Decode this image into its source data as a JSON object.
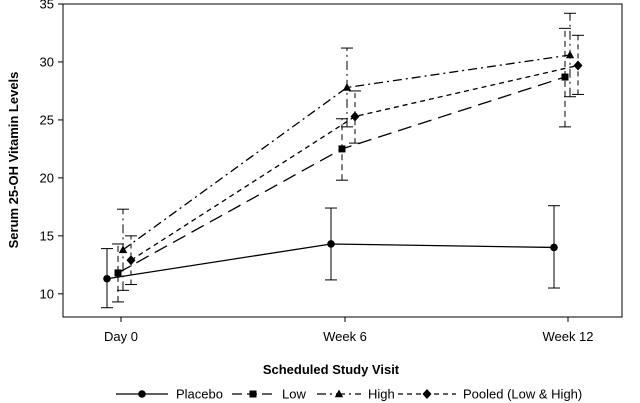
{
  "chart_data": {
    "type": "line",
    "title": "",
    "xlabel": "Scheduled Study Visit",
    "ylabel": "Serum 25-OH Vitamin Levels",
    "categories": [
      "Day 0",
      "Week 6",
      "Week 12"
    ],
    "ylim": [
      8,
      35
    ],
    "yticks": [
      10,
      15,
      20,
      25,
      30,
      35
    ],
    "grid": false,
    "legend_position": "bottom",
    "series": [
      {
        "name": "Placebo",
        "marker": "circle",
        "dash": "solid",
        "values": [
          11.3,
          14.3,
          14.0
        ],
        "lower": [
          8.8,
          11.2,
          10.5
        ],
        "upper": [
          13.9,
          17.4,
          17.6
        ]
      },
      {
        "name": "Low",
        "marker": "square",
        "dash": "long-dash",
        "values": [
          11.8,
          22.5,
          28.7
        ],
        "lower": [
          9.3,
          19.8,
          24.4
        ],
        "upper": [
          14.3,
          25.1,
          32.9
        ]
      },
      {
        "name": "High",
        "marker": "triangle",
        "dash": "dash-dot",
        "values": [
          13.8,
          27.8,
          30.6
        ],
        "lower": [
          10.3,
          24.4,
          27.0
        ],
        "upper": [
          17.3,
          31.2,
          34.2
        ]
      },
      {
        "name": "Pooled (Low & High)",
        "marker": "diamond",
        "dash": "short-dash",
        "values": [
          12.9,
          25.3,
          29.7
        ],
        "lower": [
          10.8,
          23.0,
          27.2
        ],
        "upper": [
          15.0,
          27.5,
          32.3
        ]
      }
    ]
  }
}
